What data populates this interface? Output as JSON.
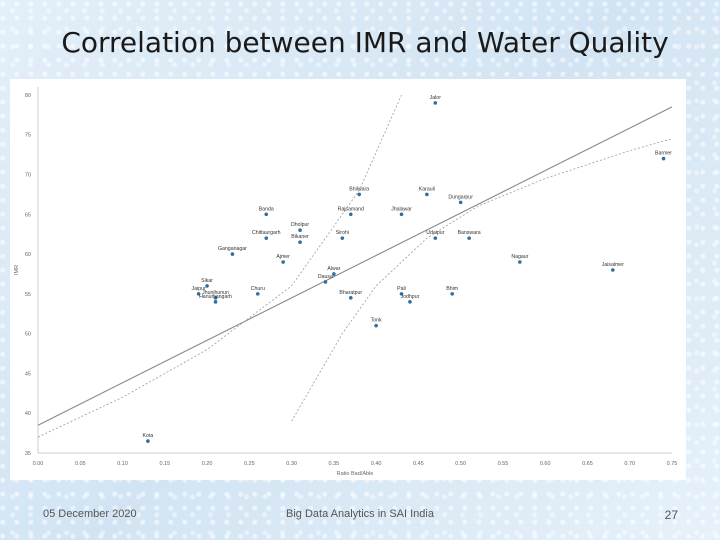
{
  "slide": {
    "title": "Correlation between IMR and Water Quality",
    "footer_date": "05 December 2020",
    "footer_center": "Big Data Analytics in SAI India",
    "page_number": "27"
  },
  "chart_data": {
    "type": "scatter",
    "title": "",
    "xlabel": "Ratio Bad/Able",
    "ylabel": "IMR",
    "xlim": [
      0.0,
      0.75
    ],
    "ylim": [
      35,
      81
    ],
    "x_ticks": [
      0.0,
      0.05,
      0.1,
      0.15,
      0.2,
      0.25,
      0.3,
      0.35,
      0.4,
      0.45,
      0.5,
      0.55,
      0.6,
      0.65,
      0.7,
      0.75
    ],
    "x_tick_labels": [
      "0.00",
      "0.05",
      "0.10",
      "0.15",
      "0.20",
      "0.25",
      "0.30",
      "0.35",
      "0.40",
      "0.45",
      "0.50",
      "0.55",
      "0.60",
      "0.65",
      "0.70",
      "0.75"
    ],
    "y_ticks": [
      35,
      40,
      45,
      50,
      55,
      60,
      65,
      70,
      75,
      80
    ],
    "y_tick_labels": [
      "35",
      "40",
      "45",
      "50",
      "55",
      "60",
      "65",
      "70",
      "75",
      "80"
    ],
    "grid": false,
    "point_color": "#2f6f9f",
    "line_color": "#9a9a9a",
    "trend_line": [
      [
        0.0,
        38.5
      ],
      [
        0.75,
        78.5
      ]
    ],
    "confidence_upper": [
      [
        0.0,
        37
      ],
      [
        0.1,
        42
      ],
      [
        0.2,
        48
      ],
      [
        0.3,
        56
      ],
      [
        0.34,
        62
      ],
      [
        0.38,
        68
      ],
      [
        0.43,
        80
      ]
    ],
    "confidence_lower": [
      [
        0.3,
        39
      ],
      [
        0.36,
        50
      ],
      [
        0.4,
        56
      ],
      [
        0.46,
        62
      ],
      [
        0.52,
        66
      ],
      [
        0.6,
        69.5
      ],
      [
        0.7,
        73
      ],
      [
        0.75,
        74.5
      ]
    ],
    "points": [
      {
        "label": "Jalor",
        "x": 0.47,
        "y": 79.0
      },
      {
        "label": "Barmer",
        "x": 0.74,
        "y": 72.0
      },
      {
        "label": "Bhilwara",
        "x": 0.38,
        "y": 67.5
      },
      {
        "label": "Karauli",
        "x": 0.46,
        "y": 67.5
      },
      {
        "label": "Dungarpur",
        "x": 0.5,
        "y": 66.5
      },
      {
        "label": "Banda",
        "x": 0.27,
        "y": 65.0
      },
      {
        "label": "Rajsamand",
        "x": 0.37,
        "y": 65.0
      },
      {
        "label": "Jhalawar",
        "x": 0.43,
        "y": 65.0
      },
      {
        "label": "Dholpur",
        "x": 0.31,
        "y": 63.0
      },
      {
        "label": "Chittaurgarh",
        "x": 0.27,
        "y": 62.0
      },
      {
        "label": "Sirohi",
        "x": 0.36,
        "y": 62.0
      },
      {
        "label": "Udaipur",
        "x": 0.47,
        "y": 62.0
      },
      {
        "label": "Banswara",
        "x": 0.51,
        "y": 62.0
      },
      {
        "label": "Bikaner",
        "x": 0.31,
        "y": 61.5
      },
      {
        "label": "Ganganagar",
        "x": 0.23,
        "y": 60.0
      },
      {
        "label": "Ajmer",
        "x": 0.29,
        "y": 59.0
      },
      {
        "label": "Nagaur",
        "x": 0.57,
        "y": 59.0
      },
      {
        "label": "Jaisalmer",
        "x": 0.68,
        "y": 58.0
      },
      {
        "label": "Alwar",
        "x": 0.35,
        "y": 57.5
      },
      {
        "label": "Sikar",
        "x": 0.2,
        "y": 56.0
      },
      {
        "label": "Dausa",
        "x": 0.34,
        "y": 56.5
      },
      {
        "label": "Jaipur",
        "x": 0.19,
        "y": 55.0
      },
      {
        "label": "Churu",
        "x": 0.26,
        "y": 55.0
      },
      {
        "label": "Jhunjhunun",
        "x": 0.21,
        "y": 54.5
      },
      {
        "label": "Hanumangarh",
        "x": 0.21,
        "y": 54.0
      },
      {
        "label": "Bharatpur",
        "x": 0.37,
        "y": 54.5
      },
      {
        "label": "Pali",
        "x": 0.43,
        "y": 55.0
      },
      {
        "label": "Bhim",
        "x": 0.49,
        "y": 55.0
      },
      {
        "label": "Jodhpur",
        "x": 0.44,
        "y": 54.0
      },
      {
        "label": "Tonk",
        "x": 0.4,
        "y": 51.0
      },
      {
        "label": "Kota",
        "x": 0.13,
        "y": 36.5
      }
    ]
  }
}
